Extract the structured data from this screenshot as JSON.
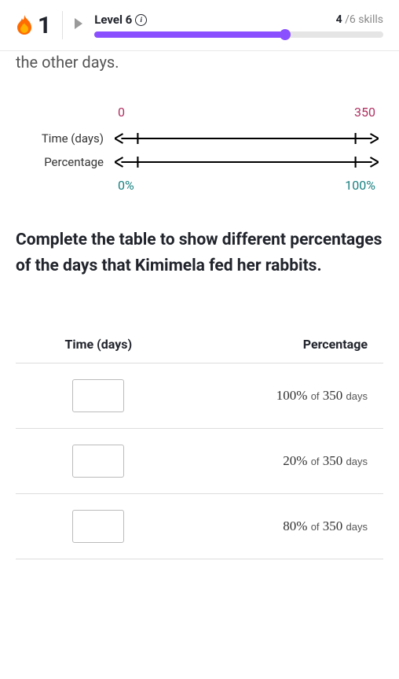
{
  "header": {
    "streak_count": "1",
    "level_label": "Level 6",
    "skills_done": "4",
    "skills_total": "/6 skills",
    "progress_pct": 66
  },
  "truncated_text": "the other days.",
  "numline": {
    "time_label": "Time (days)",
    "time_start": "0",
    "time_end": "350",
    "pct_label": "Percentage",
    "pct_start": "0%",
    "pct_end": "100%",
    "time_color": "#b03060",
    "pct_color": "#1a8080"
  },
  "prompt": "Complete the table to show different percentages of the days that Kimimela fed her rabbits.",
  "table": {
    "col1": "Time (days)",
    "col2": "Percentage",
    "rows": [
      {
        "pct": "100%",
        "mid": "of",
        "val": "350",
        "unit": "days"
      },
      {
        "pct": "20%",
        "mid": "of",
        "val": "350",
        "unit": "days"
      },
      {
        "pct": "80%",
        "mid": "of",
        "val": "350",
        "unit": "days"
      }
    ]
  }
}
